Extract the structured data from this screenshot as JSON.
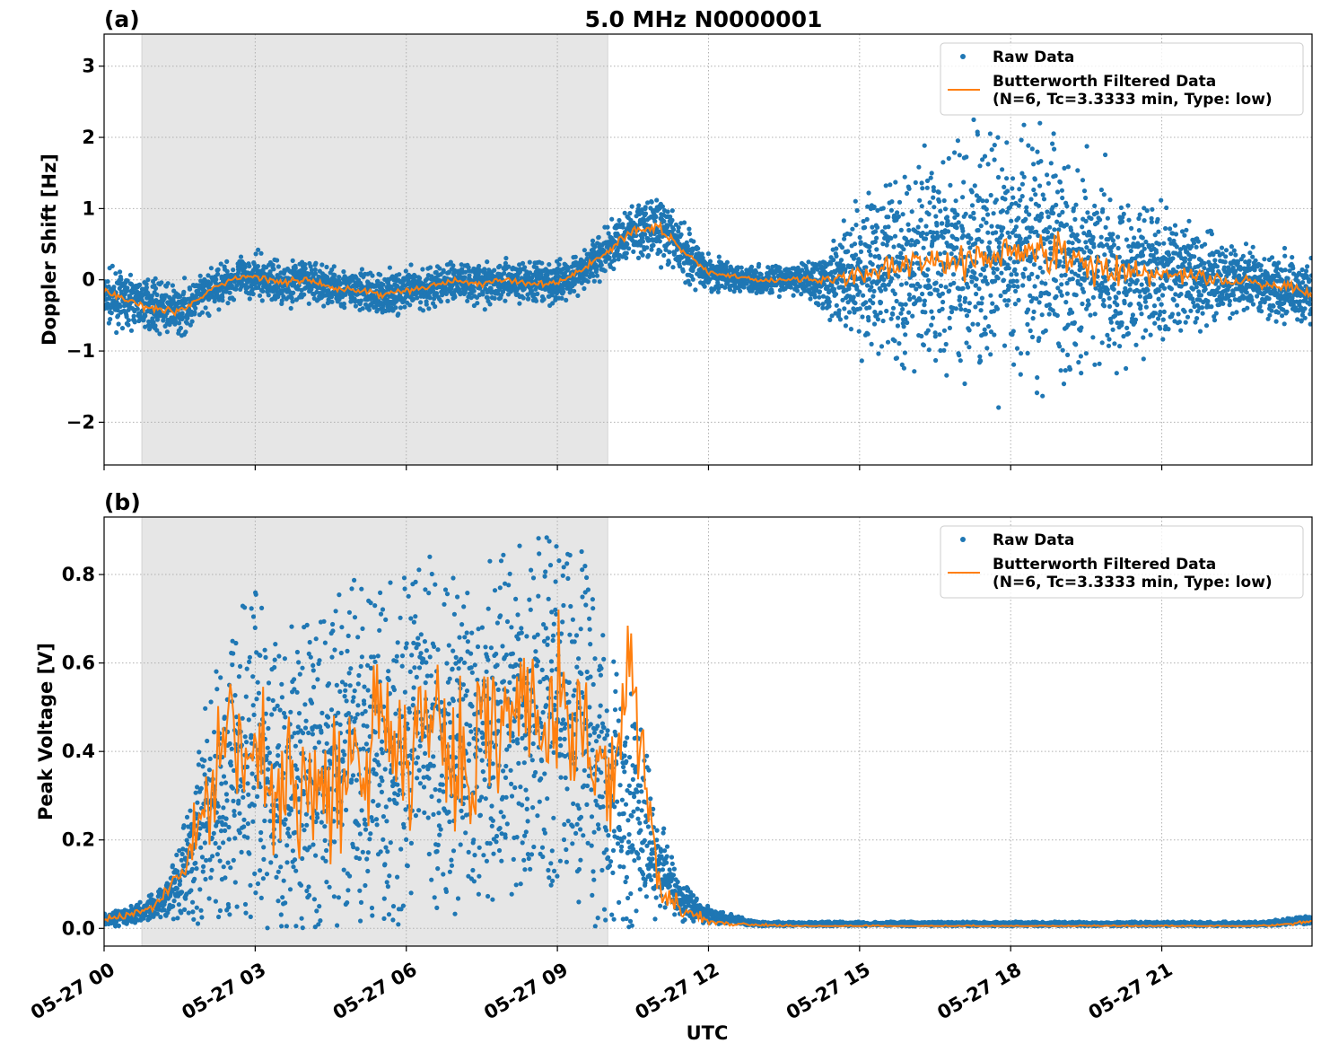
{
  "figure": {
    "title": "5.0 MHz N0000001",
    "xlabel": "UTC"
  },
  "chart_data": [
    {
      "panel": "(a)",
      "type": "scatter",
      "title": "5.0 MHz N0000001",
      "xlabel": "",
      "ylabel": "Doppler Shift [Hz]",
      "xlim": [
        "05-27 00:00",
        "05-27 23:59"
      ],
      "ylim": [
        -2.6,
        3.45
      ],
      "y_ticks": [
        "−2",
        "−1",
        "0",
        "1",
        "2",
        "3"
      ],
      "x_ticks": [
        "05-27 00",
        "05-27 03",
        "05-27 06",
        "05-27 09",
        "05-27 12",
        "05-27 15",
        "05-27 18",
        "05-27 21"
      ],
      "shaded_span_utc_hours": [
        0.75,
        10.0
      ],
      "grid": true,
      "legend_position": "upper right",
      "legend": [
        "Raw Data",
        "Butterworth Filtered Data\n(N=6, Tc=3.3333 min, Type: low)"
      ],
      "series": [
        {
          "name": "Raw Data",
          "style": "points",
          "color": "#1f77b4",
          "x_hours": [
            0,
            0.5,
            1,
            1.5,
            2,
            2.5,
            3,
            3.5,
            4,
            4.5,
            5,
            5.5,
            6,
            6.5,
            7,
            7.5,
            8,
            8.5,
            9,
            9.5,
            10,
            10.5,
            11,
            11.5,
            12,
            12.5,
            13,
            13.5,
            14,
            14.5,
            15,
            15.5,
            16,
            16.5,
            17,
            17.5,
            18,
            18.5,
            19,
            19.5,
            20,
            20.5,
            21,
            21.5,
            22,
            22.5,
            23,
            23.5,
            23.98
          ],
          "center": [
            -0.25,
            -0.3,
            -0.35,
            -0.45,
            -0.2,
            0.0,
            0.05,
            -0.05,
            0.0,
            -0.1,
            -0.15,
            -0.2,
            -0.15,
            -0.1,
            0.0,
            -0.05,
            0.0,
            -0.05,
            -0.05,
            0.15,
            0.4,
            0.7,
            0.75,
            0.4,
            0.1,
            0.05,
            0.0,
            0.0,
            0.0,
            0.0,
            0.05,
            0.2,
            0.2,
            0.25,
            0.3,
            0.3,
            0.35,
            0.4,
            0.4,
            0.2,
            0.1,
            0.1,
            0.05,
            0.05,
            0.0,
            0.0,
            -0.05,
            -0.1,
            -0.2
          ],
          "spread": [
            0.35,
            0.35,
            0.35,
            0.35,
            0.3,
            0.3,
            0.3,
            0.3,
            0.3,
            0.3,
            0.3,
            0.3,
            0.3,
            0.3,
            0.3,
            0.3,
            0.3,
            0.3,
            0.3,
            0.3,
            0.35,
            0.4,
            0.45,
            0.4,
            0.25,
            0.2,
            0.2,
            0.2,
            0.3,
            0.6,
            1.0,
            1.3,
            1.4,
            1.5,
            1.6,
            1.6,
            1.6,
            1.7,
            1.7,
            1.5,
            1.3,
            1.1,
            0.9,
            0.8,
            0.6,
            0.5,
            0.45,
            0.45,
            0.45
          ]
        },
        {
          "name": "Butterworth Filtered Data\n(N=6, Tc=3.3333 min, Type: low)",
          "style": "line",
          "color": "#ff7f0e",
          "x_hours": [
            0,
            0.5,
            1,
            1.5,
            2,
            2.5,
            3,
            3.5,
            4,
            4.5,
            5,
            5.5,
            6,
            6.5,
            7,
            7.5,
            8,
            8.5,
            9,
            9.5,
            10,
            10.5,
            11,
            11.5,
            12,
            12.5,
            13,
            13.5,
            14,
            14.5,
            15,
            15.5,
            16,
            16.5,
            17,
            17.5,
            18,
            18.5,
            19,
            19.5,
            20,
            20.5,
            21,
            21.5,
            22,
            22.5,
            23,
            23.5,
            23.98
          ],
          "values": [
            -0.15,
            -0.3,
            -0.4,
            -0.45,
            -0.2,
            0.0,
            0.05,
            -0.05,
            0.0,
            -0.1,
            -0.15,
            -0.2,
            -0.15,
            -0.1,
            0.0,
            -0.05,
            0.0,
            -0.05,
            -0.05,
            0.15,
            0.4,
            0.7,
            0.75,
            0.4,
            0.1,
            0.05,
            0.0,
            0.0,
            0.0,
            0.0,
            0.05,
            0.2,
            0.2,
            0.25,
            0.3,
            0.3,
            0.35,
            0.4,
            0.4,
            0.2,
            0.1,
            0.1,
            0.05,
            0.05,
            0.0,
            0.0,
            -0.05,
            -0.1,
            -0.2
          ]
        }
      ]
    },
    {
      "panel": "(b)",
      "type": "scatter",
      "xlabel": "UTC",
      "ylabel": "Peak Voltage [V]",
      "xlim": [
        "05-27 00:00",
        "05-27 23:59"
      ],
      "ylim": [
        -0.04,
        0.93
      ],
      "y_ticks": [
        "0.0",
        "0.2",
        "0.4",
        "0.6",
        "0.8"
      ],
      "x_ticks": [
        "05-27 00",
        "05-27 03",
        "05-27 06",
        "05-27 09",
        "05-27 12",
        "05-27 15",
        "05-27 18",
        "05-27 21"
      ],
      "shaded_span_utc_hours": [
        0.75,
        10.0
      ],
      "grid": true,
      "legend_position": "upper right",
      "legend": [
        "Raw Data",
        "Butterworth Filtered Data\n(N=6, Tc=3.3333 min, Type: low)"
      ],
      "series": [
        {
          "name": "Raw Data",
          "style": "points",
          "color": "#1f77b4",
          "x_hours": [
            0,
            0.5,
            1,
            1.5,
            2,
            2.5,
            3,
            3.5,
            4,
            4.5,
            5,
            5.5,
            6,
            6.5,
            7,
            7.5,
            8,
            8.5,
            9,
            9.5,
            10,
            10.5,
            11,
            11.5,
            12,
            12.5,
            13,
            13.5,
            14,
            14.5,
            15,
            15.5,
            16,
            16.5,
            17,
            17.5,
            18,
            18.5,
            19,
            19.5,
            20,
            20.5,
            21,
            21.5,
            22,
            22.5,
            23,
            23.5,
            23.98
          ],
          "center": [
            0.02,
            0.03,
            0.05,
            0.1,
            0.25,
            0.35,
            0.4,
            0.35,
            0.35,
            0.38,
            0.4,
            0.42,
            0.4,
            0.45,
            0.42,
            0.45,
            0.45,
            0.48,
            0.5,
            0.45,
            0.35,
            0.25,
            0.15,
            0.06,
            0.03,
            0.02,
            0.01,
            0.01,
            0.01,
            0.01,
            0.01,
            0.01,
            0.01,
            0.01,
            0.01,
            0.01,
            0.01,
            0.01,
            0.01,
            0.01,
            0.01,
            0.01,
            0.01,
            0.01,
            0.01,
            0.01,
            0.01,
            0.015,
            0.02
          ],
          "spread": [
            0.02,
            0.02,
            0.03,
            0.08,
            0.25,
            0.35,
            0.4,
            0.38,
            0.38,
            0.4,
            0.4,
            0.4,
            0.4,
            0.4,
            0.4,
            0.4,
            0.4,
            0.4,
            0.4,
            0.4,
            0.35,
            0.3,
            0.12,
            0.04,
            0.02,
            0.01,
            0.005,
            0.005,
            0.005,
            0.005,
            0.005,
            0.005,
            0.005,
            0.005,
            0.005,
            0.005,
            0.005,
            0.005,
            0.005,
            0.005,
            0.005,
            0.005,
            0.005,
            0.005,
            0.005,
            0.005,
            0.005,
            0.008,
            0.01
          ]
        },
        {
          "name": "Butterworth Filtered Data\n(N=6, Tc=3.3333 min, Type: low)",
          "style": "line",
          "color": "#ff7f0e",
          "x_hours": [
            0,
            0.5,
            1,
            1.5,
            2,
            2.5,
            3,
            3.5,
            4,
            4.5,
            5,
            5.5,
            6,
            6.5,
            7,
            7.5,
            8,
            8.5,
            9,
            9.5,
            10,
            10.5,
            11,
            11.5,
            12,
            12.5,
            13,
            13.5,
            14,
            14.5,
            15,
            15.5,
            16,
            16.5,
            17,
            17.5,
            18,
            18.5,
            19,
            19.5,
            20,
            20.5,
            21,
            21.5,
            22,
            22.5,
            23,
            23.5,
            23.98
          ],
          "values": [
            0.02,
            0.03,
            0.05,
            0.12,
            0.25,
            0.5,
            0.35,
            0.3,
            0.35,
            0.3,
            0.38,
            0.45,
            0.35,
            0.5,
            0.35,
            0.45,
            0.45,
            0.5,
            0.5,
            0.45,
            0.3,
            0.55,
            0.1,
            0.04,
            0.015,
            0.01,
            0.008,
            0.006,
            0.005,
            0.005,
            0.005,
            0.005,
            0.005,
            0.005,
            0.005,
            0.005,
            0.005,
            0.005,
            0.005,
            0.005,
            0.005,
            0.005,
            0.005,
            0.005,
            0.005,
            0.005,
            0.006,
            0.01,
            0.015
          ]
        }
      ]
    }
  ]
}
